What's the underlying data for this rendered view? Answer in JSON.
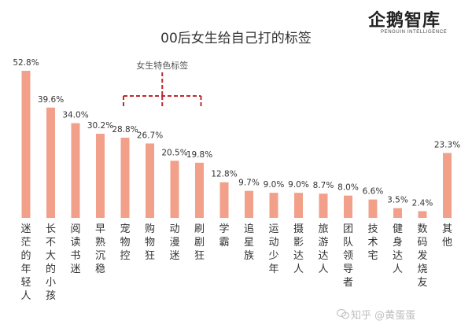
{
  "logo": {
    "brand": "企鹅智库",
    "sub": "PENGUIN INTELLIGENCE"
  },
  "watermark": "知乎 @黄蛋蛋",
  "colors": {
    "bar": "#F2A08A",
    "text": "#333333",
    "bracket": "#C0272D",
    "label": "#555555"
  },
  "chart_data": {
    "type": "bar",
    "title": "00后女生给自己打的标签",
    "categories": [
      "迷茫的年轻人",
      "长不大的小孩",
      "阅读书迷",
      "早熟沉稳",
      "宠物控",
      "购物狂",
      "动漫迷",
      "刷剧狂",
      "学霸",
      "追星族",
      "运动少年",
      "摄影达人",
      "旅游达人",
      "团队领导者",
      "技术宅",
      "健身达人",
      "数码发烧友",
      "其他"
    ],
    "values": [
      52.8,
      39.6,
      34.0,
      30.2,
      28.8,
      26.7,
      20.5,
      19.8,
      12.8,
      9.7,
      9.0,
      9.0,
      8.7,
      8.0,
      6.6,
      3.5,
      2.4,
      23.3
    ],
    "value_labels": [
      "52.8%",
      "39.6%",
      "34.0%",
      "30.2%",
      "28.8%",
      "26.7%",
      "20.5%",
      "19.8%",
      "12.8%",
      "9.7%",
      "9.0%",
      "9.0%",
      "8.7%",
      "8.0%",
      "6.6%",
      "3.5%",
      "2.4%",
      "23.3%"
    ],
    "annotation": {
      "text": "女生特色标签",
      "covers": [
        "宠物控",
        "购物狂",
        "动漫迷",
        "刷剧狂"
      ]
    },
    "ylim": [
      0,
      60
    ],
    "grid": false,
    "legend": "none"
  }
}
